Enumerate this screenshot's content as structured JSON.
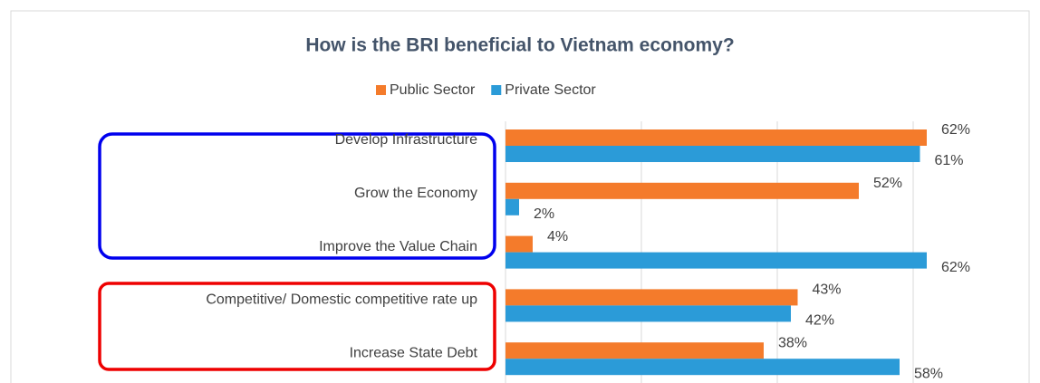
{
  "chart_data": {
    "type": "bar",
    "orientation": "horizontal",
    "title": "How is the BRI beneficial to Vietnam economy?",
    "categories": [
      "Develop Infrastructure",
      "Grow the Economy",
      "Improve the Value Chain",
      "Competitive/ Domestic competitive rate up",
      "Increase State Debt"
    ],
    "series": [
      {
        "name": "Public Sector",
        "color": "#f47b2b",
        "values": [
          62,
          52,
          4,
          43,
          38
        ],
        "value_labels": [
          "62%",
          "52%",
          "4%",
          "43%",
          "38%"
        ]
      },
      {
        "name": "Private Sector",
        "color": "#2b9bd8",
        "values": [
          61,
          2,
          62,
          42,
          58
        ],
        "value_labels": [
          "61%",
          "2%",
          "62%",
          "42%",
          "58%"
        ]
      }
    ],
    "xlim": [
      0,
      70
    ],
    "xticks": [
      0,
      20,
      40,
      60
    ],
    "grid": true,
    "legend": "top"
  }
}
